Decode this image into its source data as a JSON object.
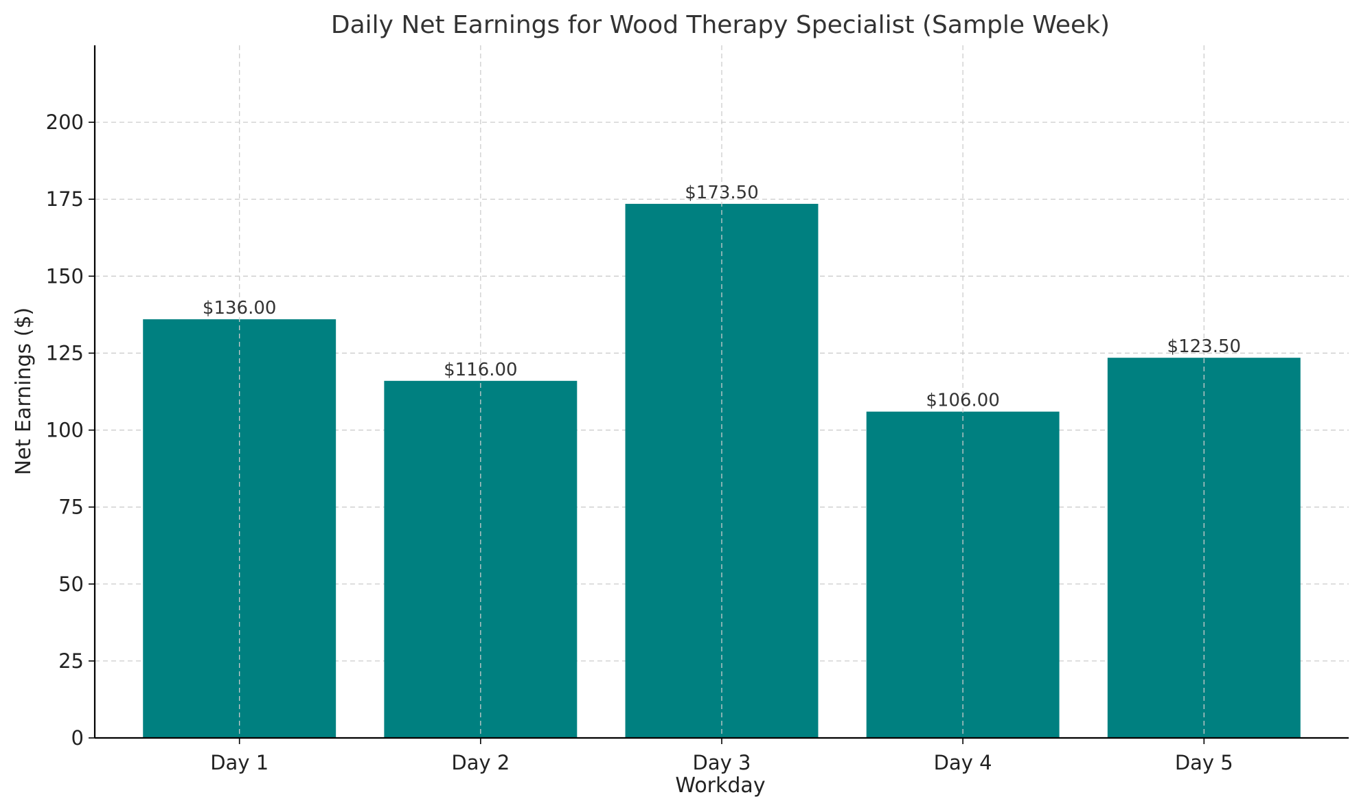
{
  "chart_data": {
    "type": "bar",
    "title": "Daily Net Earnings for Wood Therapy Specialist (Sample Week)",
    "xlabel": "Workday",
    "ylabel": "Net Earnings ($)",
    "categories": [
      "Day 1",
      "Day 2",
      "Day 3",
      "Day 4",
      "Day 5"
    ],
    "values": [
      136.0,
      116.0,
      173.5,
      106.0,
      123.5
    ],
    "data_labels": [
      "$136.00",
      "$116.00",
      "$173.50",
      "$106.00",
      "$123.50"
    ],
    "ylim": [
      0,
      225
    ],
    "yticks": [
      0,
      25,
      50,
      75,
      100,
      125,
      150,
      175,
      200
    ],
    "grid": true,
    "bar_color": "#008080"
  }
}
